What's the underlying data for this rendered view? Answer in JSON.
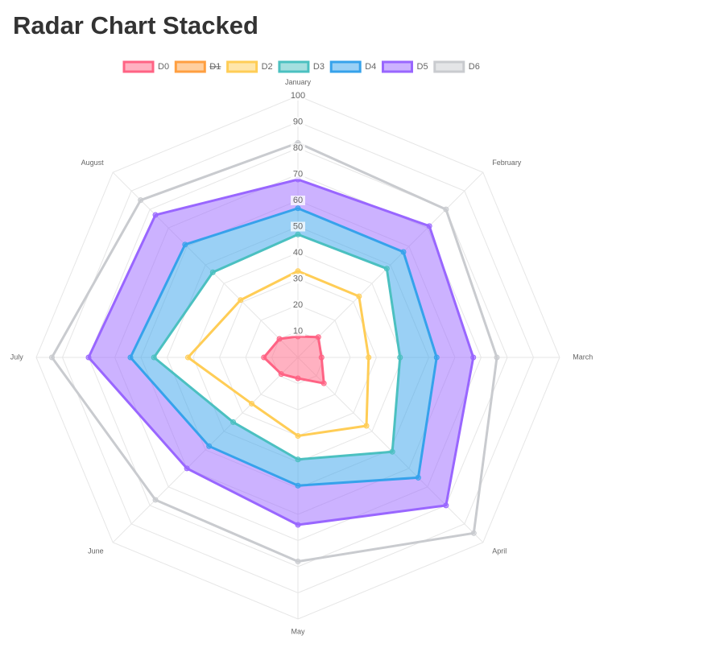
{
  "title": "Radar Chart Stacked",
  "chart_data": {
    "type": "radar",
    "categories": [
      "January",
      "February",
      "March",
      "April",
      "May",
      "June",
      "July",
      "August"
    ],
    "rlim": [
      0,
      100
    ],
    "rticks": [
      10,
      20,
      30,
      40,
      50,
      60,
      70,
      80,
      90,
      100
    ],
    "grid": true,
    "legend": "top",
    "series": [
      {
        "name": "D0",
        "color": "#ff6384",
        "fill": "origin",
        "values": [
          8,
          11,
          9,
          14,
          8,
          9,
          13,
          10
        ]
      },
      {
        "name": "D1",
        "color": "#ff9f40",
        "hidden": true
      },
      {
        "name": "D2",
        "color": "#ffcd56",
        "values": [
          33,
          33,
          27,
          37,
          30,
          25,
          42,
          31
        ]
      },
      {
        "name": "D3",
        "color": "#4bc0c0",
        "values": [
          47,
          48,
          39,
          51,
          39,
          35,
          55,
          46
        ]
      },
      {
        "name": "D4",
        "color": "#36a2eb",
        "fill": "previous",
        "values": [
          57,
          57,
          53,
          65,
          49,
          48,
          64,
          61
        ]
      },
      {
        "name": "D5",
        "color": "#9966ff",
        "fill": "previous",
        "values": [
          68,
          71,
          67,
          80,
          64,
          60,
          80,
          77
        ]
      },
      {
        "name": "D6",
        "color": "#c9cbcf",
        "values": [
          82,
          80,
          76,
          95,
          78,
          77,
          94,
          85
        ]
      }
    ]
  }
}
